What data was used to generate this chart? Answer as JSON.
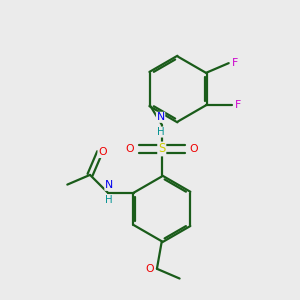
{
  "background_color": "#ebebeb",
  "bond_color": "#1a5c1a",
  "atom_colors": {
    "N": "#0000ee",
    "O": "#ee0000",
    "S": "#cccc00",
    "F": "#cc00cc",
    "H": "#009090",
    "C": "#1a5c1a"
  },
  "figsize": [
    3.0,
    3.0
  ],
  "dpi": 100,
  "lw": 1.6
}
